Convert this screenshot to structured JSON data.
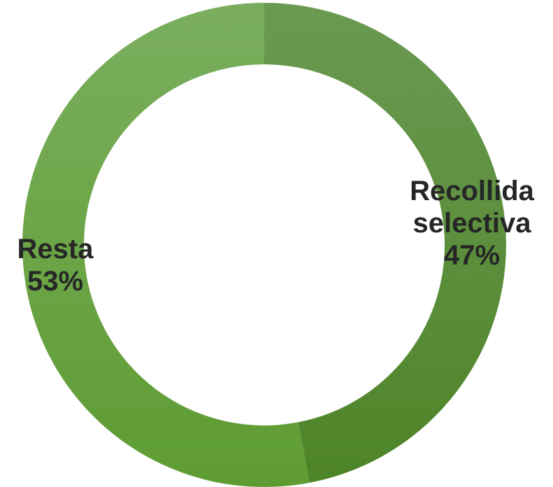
{
  "chart_data": {
    "type": "pie",
    "donut": true,
    "slices": [
      {
        "name": "Recollida selectiva",
        "lines": [
          "Recollida",
          "selectiva"
        ],
        "value": 47,
        "percent_label": "47%",
        "color_top": "#6a9a52",
        "color_bottom": "#4e8428"
      },
      {
        "name": "Resta",
        "lines": [
          "Resta"
        ],
        "value": 53,
        "percent_label": "53%",
        "color_top": "#7aae5e",
        "color_bottom": "#5e9c32"
      }
    ],
    "label_color": "#262626"
  }
}
